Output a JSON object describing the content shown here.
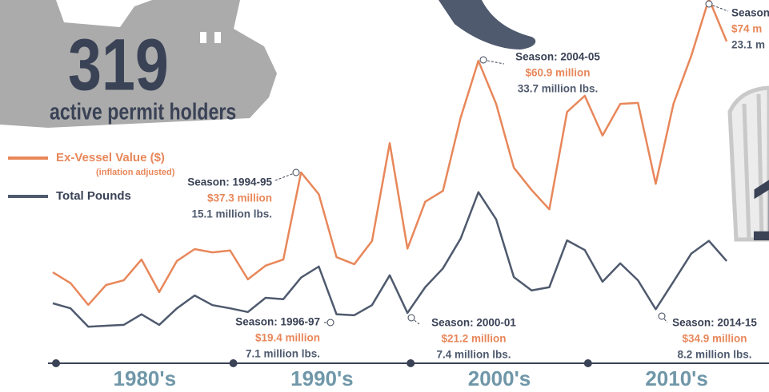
{
  "header": {
    "permit_count": "319",
    "permit_label": "active permit holders",
    "right_partial": "1"
  },
  "chart_data": {
    "type": "line",
    "categories": [
      null,
      null,
      null,
      null,
      null,
      null,
      null,
      null,
      null,
      null,
      null,
      null,
      null,
      null,
      "Season: 1994-95",
      null,
      "Season: 1996-97",
      null,
      null,
      null,
      "Season: 2000-01",
      null,
      null,
      null,
      "Season: 2004-05",
      null,
      null,
      null,
      null,
      null,
      null,
      null,
      null,
      null,
      "Season: 2014-15",
      null,
      null,
      "Season",
      null
    ],
    "xticks": [
      {
        "value": 0,
        "label": "1980's"
      },
      {
        "value": 10,
        "label": "1990's"
      },
      {
        "value": 20,
        "label": "2000's"
      },
      {
        "value": 30,
        "label": "2010's"
      }
    ],
    "ylim": [
      0,
      80
    ],
    "y2lim": [
      0,
      50
    ],
    "series": [
      {
        "name": "Ex-Vessel Value ($)",
        "legend_note": "(inflation adjusted)",
        "color": "#e8875a",
        "values": [
          16.2,
          13.9,
          9.3,
          13.5,
          14.5,
          18.9,
          12.0,
          18.6,
          21.1,
          20.4,
          20.8,
          14.7,
          17.6,
          18.9,
          37.3,
          32.7,
          19.4,
          17.9,
          22.8,
          43.5,
          21.2,
          31.1,
          33.4,
          48.9,
          60.9,
          51.8,
          38.3,
          33.6,
          29.5,
          50.1,
          53.5,
          45.1,
          51.8,
          52.0,
          34.9,
          51.8,
          61.9,
          74,
          65.0
        ],
        "value_labels": [
          null,
          null,
          null,
          null,
          null,
          null,
          null,
          null,
          null,
          null,
          null,
          null,
          null,
          null,
          "$37.3 million",
          null,
          "$19.4 million",
          null,
          null,
          null,
          "$21.2 million",
          null,
          null,
          null,
          "$60.9 million",
          null,
          null,
          null,
          null,
          null,
          null,
          null,
          null,
          null,
          "$34.9 million",
          null,
          null,
          "$74 m",
          null
        ]
      },
      {
        "name": "Total Pounds",
        "color": "#4f5a6e",
        "axis": "y2",
        "values": [
          9.5,
          8.4,
          4.4,
          4.6,
          4.8,
          7.1,
          4.8,
          8.4,
          11.2,
          9.1,
          8.4,
          7.6,
          10.7,
          10.4,
          15.1,
          17.5,
          7.1,
          6.9,
          9.1,
          15.6,
          7.4,
          13.0,
          17.1,
          23.6,
          33.7,
          27.8,
          15.2,
          12.3,
          13.0,
          23.2,
          21.1,
          14.2,
          18.2,
          14.5,
          8.2,
          14.2,
          20.3,
          23.1,
          18.7
        ],
        "value_labels": [
          null,
          null,
          null,
          null,
          null,
          null,
          null,
          null,
          null,
          null,
          null,
          null,
          null,
          null,
          "15.1 million lbs.",
          null,
          "7.1 million lbs.",
          null,
          null,
          null,
          "7.4 million lbs.",
          null,
          null,
          null,
          "33.7 million lbs.",
          null,
          null,
          null,
          null,
          null,
          null,
          null,
          null,
          null,
          "8.2 million lbs.",
          null,
          null,
          "23.1 m",
          null
        ]
      }
    ]
  }
}
